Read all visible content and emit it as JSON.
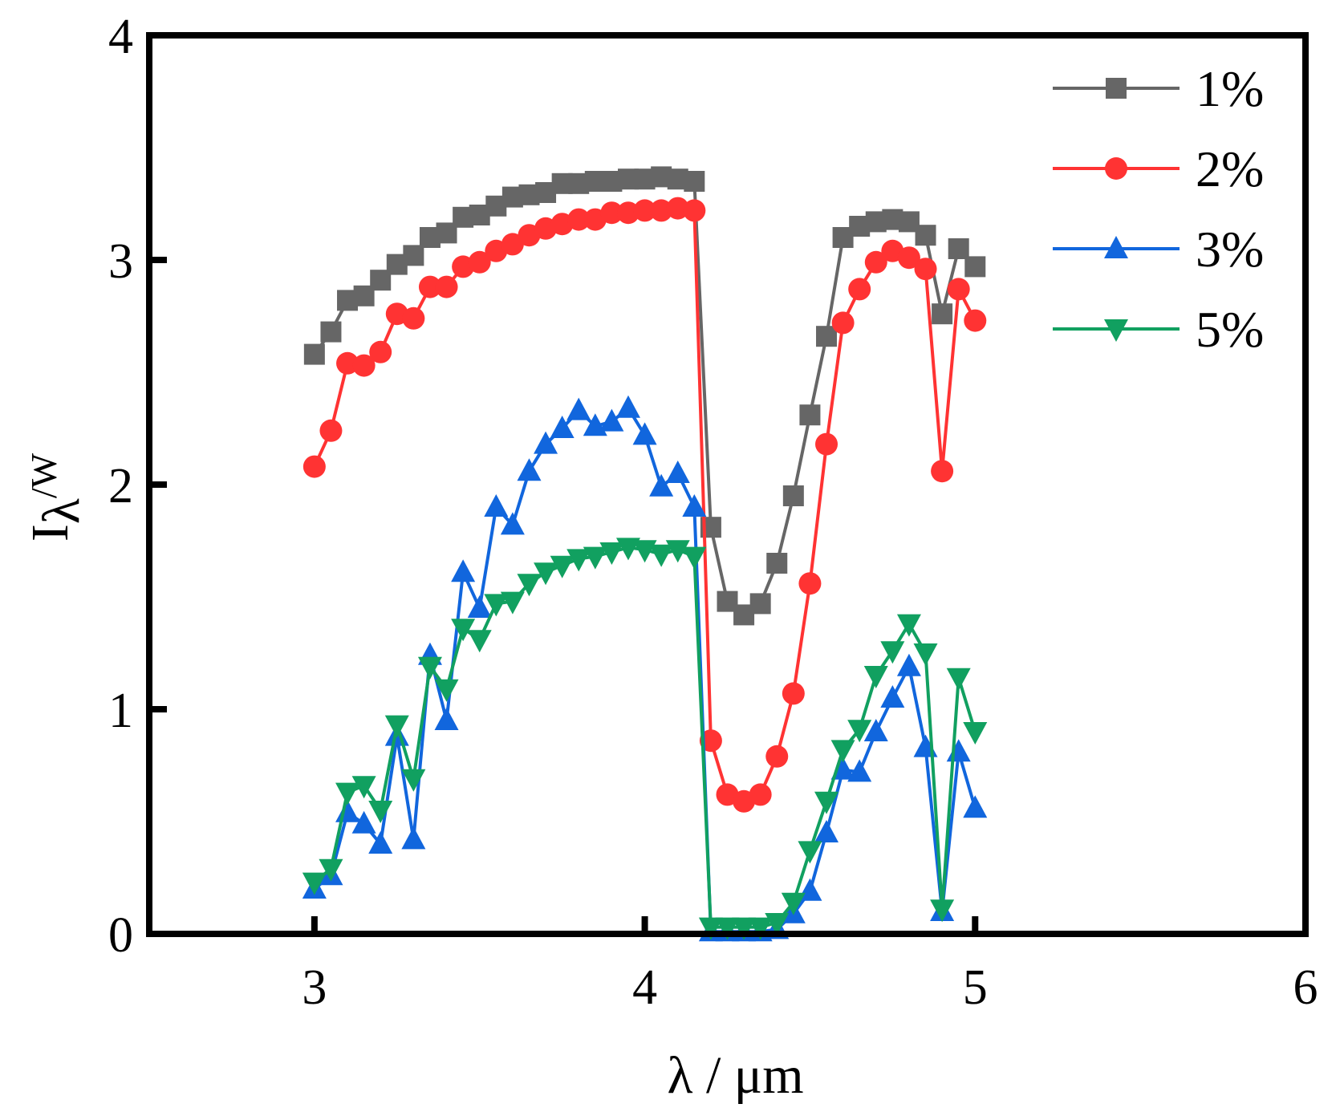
{
  "chart_data": {
    "type": "line",
    "title": "",
    "xlabel": "λ / μm",
    "ylabel_main": "I",
    "ylabel_sub": "λ",
    "ylabel_rest": "/W",
    "xlim": [
      2.5,
      6
    ],
    "ylim": [
      0,
      4
    ],
    "xticks": [
      3,
      4,
      5,
      6
    ],
    "yticks": [
      0,
      1,
      2,
      3,
      4
    ],
    "grid": false,
    "legend_position": "top-right",
    "x": [
      3.0,
      3.05,
      3.1,
      3.15,
      3.2,
      3.25,
      3.3,
      3.35,
      3.4,
      3.45,
      3.5,
      3.55,
      3.6,
      3.65,
      3.7,
      3.75,
      3.8,
      3.85,
      3.9,
      3.95,
      4.0,
      4.05,
      4.1,
      4.15,
      4.2,
      4.25,
      4.3,
      4.35,
      4.4,
      4.45,
      4.5,
      4.55,
      4.6,
      4.65,
      4.7,
      4.75,
      4.8,
      4.85,
      4.9,
      4.95,
      5.0
    ],
    "series": [
      {
        "name": "1%",
        "color": "#666666",
        "marker": "square",
        "values": [
          2.58,
          2.68,
          2.82,
          2.84,
          2.91,
          2.98,
          3.02,
          3.1,
          3.12,
          3.19,
          3.2,
          3.24,
          3.28,
          3.29,
          3.3,
          3.34,
          3.34,
          3.35,
          3.35,
          3.36,
          3.36,
          3.37,
          3.36,
          3.35,
          1.81,
          1.48,
          1.42,
          1.47,
          1.65,
          1.95,
          2.31,
          2.66,
          3.1,
          3.15,
          3.17,
          3.18,
          3.17,
          3.11,
          2.76,
          3.05,
          2.97
        ]
      },
      {
        "name": "2%",
        "color": "#ff3333",
        "marker": "circle",
        "values": [
          2.08,
          2.24,
          2.54,
          2.53,
          2.59,
          2.76,
          2.74,
          2.88,
          2.88,
          2.97,
          2.99,
          3.04,
          3.07,
          3.11,
          3.14,
          3.16,
          3.18,
          3.18,
          3.21,
          3.21,
          3.22,
          3.22,
          3.23,
          3.22,
          0.86,
          0.62,
          0.59,
          0.62,
          0.79,
          1.07,
          1.56,
          2.18,
          2.72,
          2.87,
          2.99,
          3.04,
          3.01,
          2.96,
          2.06,
          2.87,
          2.73
        ]
      },
      {
        "name": "3%",
        "color": "#1166dd",
        "marker": "triangle-up",
        "values": [
          0.2,
          0.26,
          0.54,
          0.49,
          0.4,
          0.88,
          0.42,
          1.24,
          0.95,
          1.61,
          1.45,
          1.9,
          1.82,
          2.06,
          2.18,
          2.25,
          2.33,
          2.26,
          2.28,
          2.34,
          2.22,
          1.99,
          2.05,
          1.9,
          0.01,
          0.01,
          0.01,
          0.01,
          0.02,
          0.09,
          0.19,
          0.45,
          0.73,
          0.72,
          0.9,
          1.05,
          1.19,
          0.83,
          0.1,
          0.81,
          0.56
        ]
      },
      {
        "name": "5%",
        "color": "#11a060",
        "marker": "triangle-down",
        "values": [
          0.23,
          0.29,
          0.63,
          0.66,
          0.55,
          0.93,
          0.69,
          1.19,
          1.09,
          1.36,
          1.31,
          1.47,
          1.48,
          1.56,
          1.61,
          1.64,
          1.67,
          1.68,
          1.7,
          1.72,
          1.71,
          1.69,
          1.71,
          1.68,
          0.03,
          0.03,
          0.03,
          0.03,
          0.05,
          0.14,
          0.37,
          0.59,
          0.82,
          0.91,
          1.15,
          1.26,
          1.38,
          1.25,
          0.11,
          1.14,
          0.9
        ]
      }
    ]
  }
}
